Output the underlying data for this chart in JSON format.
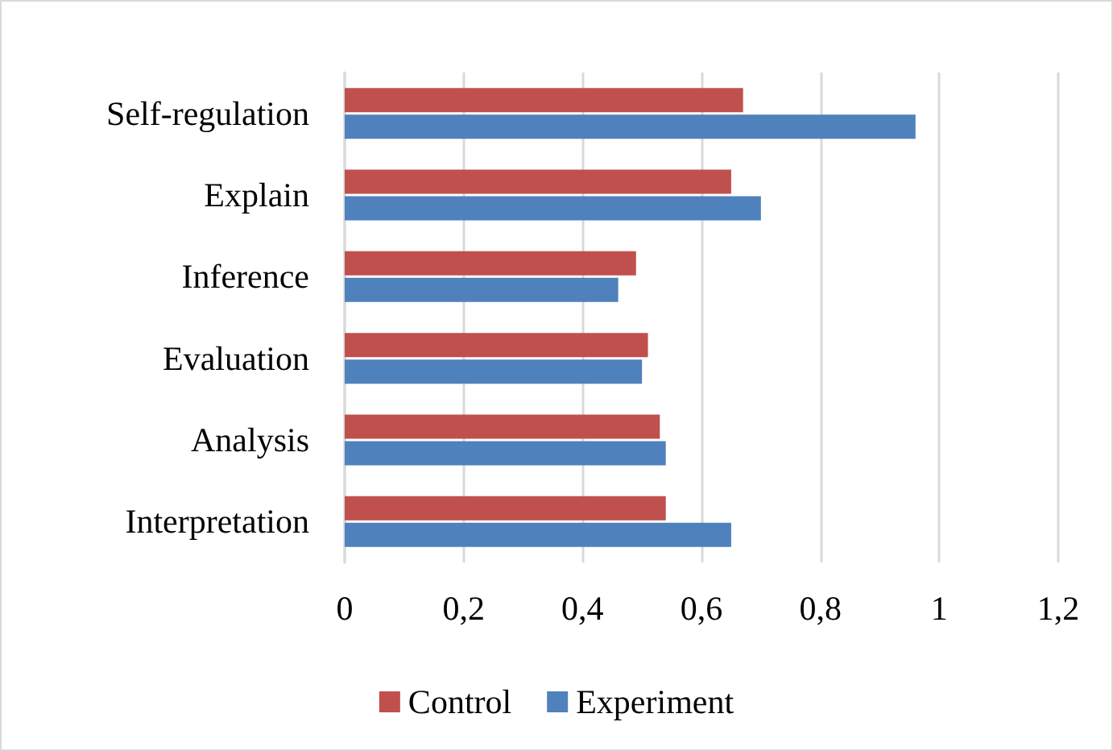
{
  "chart_data": {
    "type": "bar",
    "orientation": "horizontal",
    "categories": [
      "Self-regulation",
      "Explain",
      "Inference",
      "Evaluation",
      "Analysis",
      "Interpretation"
    ],
    "series": [
      {
        "name": "Control",
        "color": "#c0504d",
        "values": [
          0.67,
          0.65,
          0.49,
          0.51,
          0.53,
          0.54
        ]
      },
      {
        "name": "Experiment",
        "color": "#4f81bd",
        "values": [
          0.96,
          0.7,
          0.46,
          0.5,
          0.54,
          0.65
        ]
      }
    ],
    "xlim": [
      0,
      1.2
    ],
    "xticks": [
      0,
      {
        "value": 0.2,
        "label": "0,2"
      },
      {
        "value": 0.4,
        "label": "0,4"
      },
      {
        "value": 0.6,
        "label": "0,6"
      },
      {
        "value": 0.8,
        "label": "0,8"
      },
      1,
      {
        "value": 1.2,
        "label": "1,2"
      }
    ],
    "grid": "x",
    "legend": "bottom"
  }
}
